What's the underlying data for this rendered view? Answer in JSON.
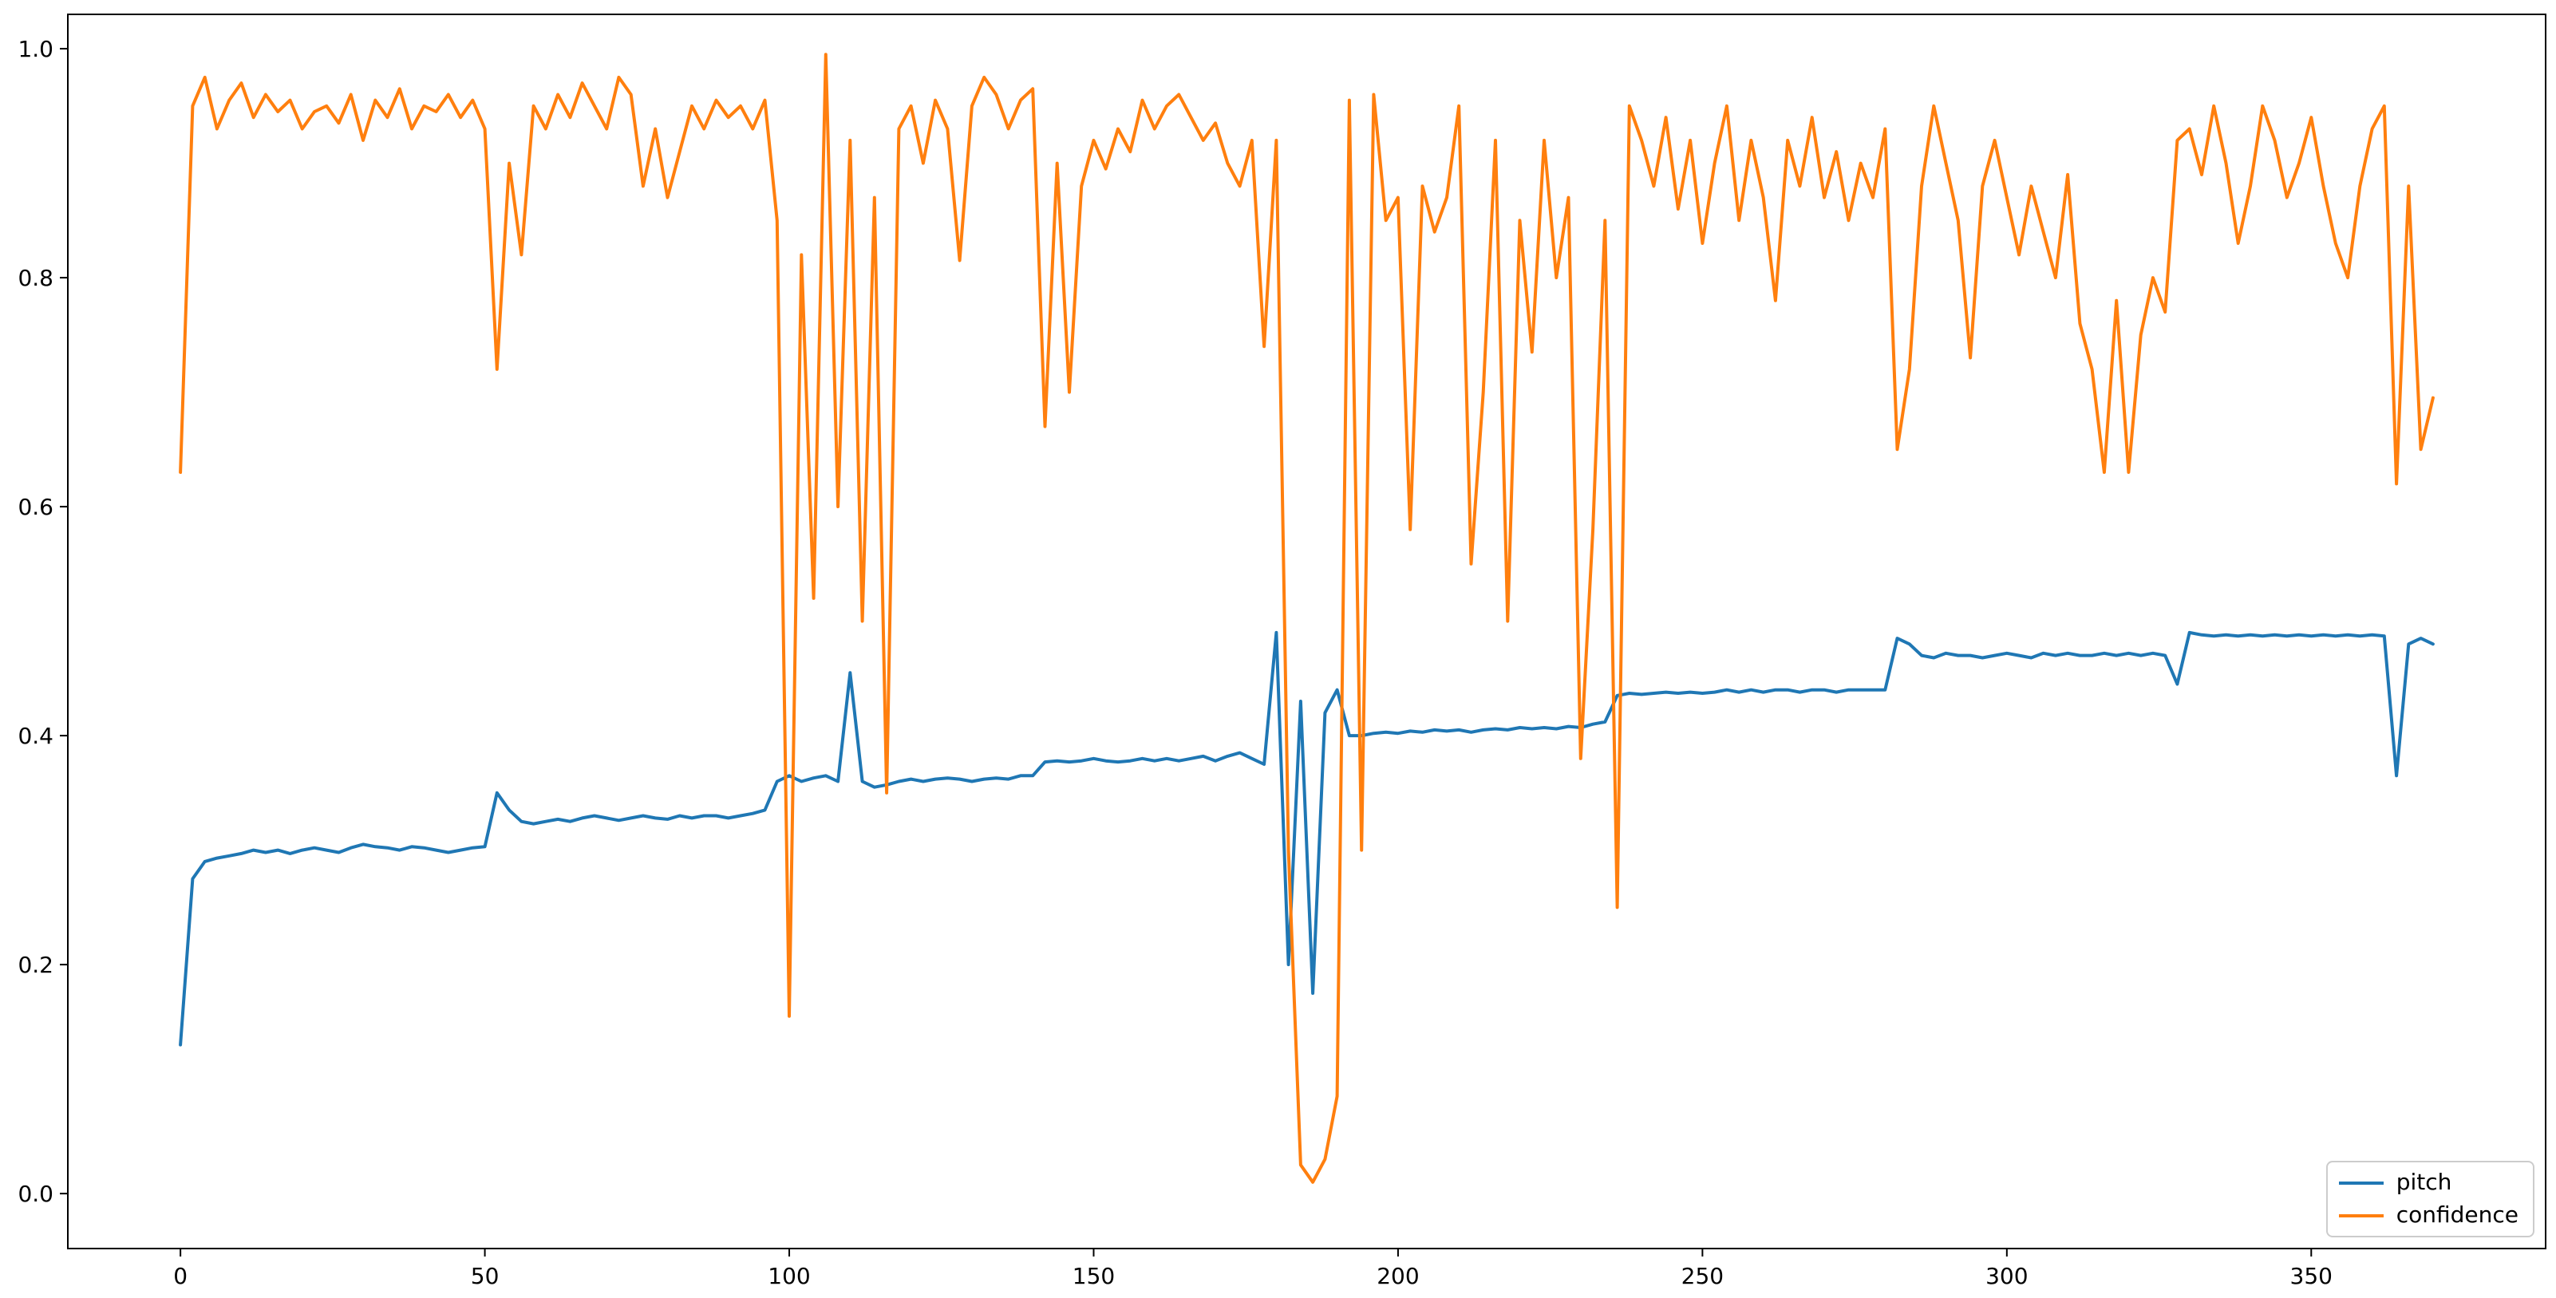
{
  "figure": {
    "background": "#ffffff"
  },
  "chart_data": {
    "type": "line",
    "title": "",
    "xlabel": "",
    "ylabel": "",
    "grid": false,
    "legend_position": "lower right",
    "xlim": [
      -18.5,
      388.5
    ],
    "ylim": [
      -0.048,
      1.03
    ],
    "x_ticks": [
      0,
      50,
      100,
      150,
      200,
      250,
      300,
      350
    ],
    "x_tick_labels": [
      "0",
      "50",
      "100",
      "150",
      "200",
      "250",
      "300",
      "350"
    ],
    "y_ticks": [
      0.0,
      0.2,
      0.4,
      0.6,
      0.8,
      1.0
    ],
    "y_tick_labels": [
      "0.0",
      "0.2",
      "0.4",
      "0.6",
      "0.8",
      "1.0"
    ],
    "x": [
      0,
      2,
      4,
      6,
      8,
      10,
      12,
      14,
      16,
      18,
      20,
      22,
      24,
      26,
      28,
      30,
      32,
      34,
      36,
      38,
      40,
      42,
      44,
      46,
      48,
      50,
      52,
      54,
      56,
      58,
      60,
      62,
      64,
      66,
      68,
      70,
      72,
      74,
      76,
      78,
      80,
      82,
      84,
      86,
      88,
      90,
      92,
      94,
      96,
      98,
      100,
      102,
      104,
      106,
      108,
      110,
      112,
      114,
      116,
      118,
      120,
      122,
      124,
      126,
      128,
      130,
      132,
      134,
      136,
      138,
      140,
      142,
      144,
      146,
      148,
      150,
      152,
      154,
      156,
      158,
      160,
      162,
      164,
      166,
      168,
      170,
      172,
      174,
      176,
      178,
      180,
      182,
      184,
      186,
      188,
      190,
      192,
      194,
      196,
      198,
      200,
      202,
      204,
      206,
      208,
      210,
      212,
      214,
      216,
      218,
      220,
      222,
      224,
      226,
      228,
      230,
      232,
      234,
      236,
      238,
      240,
      242,
      244,
      246,
      248,
      250,
      252,
      254,
      256,
      258,
      260,
      262,
      264,
      266,
      268,
      270,
      272,
      274,
      276,
      278,
      280,
      282,
      284,
      286,
      288,
      290,
      292,
      294,
      296,
      298,
      300,
      302,
      304,
      306,
      308,
      310,
      312,
      314,
      316,
      318,
      320,
      322,
      324,
      326,
      328,
      330,
      332,
      334,
      336,
      338,
      340,
      342,
      344,
      346,
      348,
      350,
      352,
      354,
      356,
      358,
      360,
      362,
      364,
      366,
      368,
      370
    ],
    "series": [
      {
        "name": "pitch",
        "color": "#1f77b4",
        "values": [
          0.13,
          0.275,
          0.29,
          0.293,
          0.295,
          0.297,
          0.3,
          0.298,
          0.3,
          0.297,
          0.3,
          0.302,
          0.3,
          0.298,
          0.302,
          0.305,
          0.303,
          0.302,
          0.3,
          0.303,
          0.302,
          0.3,
          0.298,
          0.3,
          0.302,
          0.303,
          0.35,
          0.335,
          0.325,
          0.323,
          0.325,
          0.327,
          0.325,
          0.328,
          0.33,
          0.328,
          0.326,
          0.328,
          0.33,
          0.328,
          0.327,
          0.33,
          0.328,
          0.33,
          0.33,
          0.328,
          0.33,
          0.332,
          0.335,
          0.36,
          0.365,
          0.36,
          0.363,
          0.365,
          0.36,
          0.455,
          0.36,
          0.355,
          0.357,
          0.36,
          0.362,
          0.36,
          0.362,
          0.363,
          0.362,
          0.36,
          0.362,
          0.363,
          0.362,
          0.365,
          0.365,
          0.377,
          0.378,
          0.377,
          0.378,
          0.38,
          0.378,
          0.377,
          0.378,
          0.38,
          0.378,
          0.38,
          0.378,
          0.38,
          0.382,
          0.378,
          0.382,
          0.385,
          0.38,
          0.375,
          0.49,
          0.2,
          0.43,
          0.175,
          0.42,
          0.44,
          0.4,
          0.4,
          0.402,
          0.403,
          0.402,
          0.404,
          0.403,
          0.405,
          0.404,
          0.405,
          0.403,
          0.405,
          0.406,
          0.405,
          0.407,
          0.406,
          0.407,
          0.406,
          0.408,
          0.407,
          0.41,
          0.412,
          0.435,
          0.437,
          0.436,
          0.437,
          0.438,
          0.437,
          0.438,
          0.437,
          0.438,
          0.44,
          0.438,
          0.44,
          0.438,
          0.44,
          0.44,
          0.438,
          0.44,
          0.44,
          0.438,
          0.44,
          0.44,
          0.44,
          0.44,
          0.485,
          0.48,
          0.47,
          0.468,
          0.472,
          0.47,
          0.47,
          0.468,
          0.47,
          0.472,
          0.47,
          0.468,
          0.472,
          0.47,
          0.472,
          0.47,
          0.47,
          0.472,
          0.47,
          0.472,
          0.47,
          0.472,
          0.47,
          0.445,
          0.49,
          0.488,
          0.487,
          0.488,
          0.487,
          0.488,
          0.487,
          0.488,
          0.487,
          0.488,
          0.487,
          0.488,
          0.487,
          0.488,
          0.487,
          0.488,
          0.487,
          0.365,
          0.48,
          0.485,
          0.48
        ]
      },
      {
        "name": "confidence",
        "color": "#ff7f0e",
        "values": [
          0.63,
          0.95,
          0.975,
          0.93,
          0.955,
          0.97,
          0.94,
          0.96,
          0.945,
          0.955,
          0.93,
          0.945,
          0.95,
          0.935,
          0.96,
          0.92,
          0.955,
          0.94,
          0.965,
          0.93,
          0.95,
          0.945,
          0.96,
          0.94,
          0.955,
          0.93,
          0.72,
          0.9,
          0.82,
          0.95,
          0.93,
          0.96,
          0.94,
          0.97,
          0.95,
          0.93,
          0.975,
          0.96,
          0.88,
          0.93,
          0.87,
          0.91,
          0.95,
          0.93,
          0.955,
          0.94,
          0.95,
          0.93,
          0.955,
          0.85,
          0.155,
          0.82,
          0.52,
          0.995,
          0.6,
          0.92,
          0.5,
          0.87,
          0.35,
          0.93,
          0.95,
          0.9,
          0.955,
          0.93,
          0.815,
          0.95,
          0.975,
          0.96,
          0.93,
          0.955,
          0.965,
          0.67,
          0.9,
          0.7,
          0.88,
          0.92,
          0.895,
          0.93,
          0.91,
          0.955,
          0.93,
          0.95,
          0.96,
          0.94,
          0.92,
          0.935,
          0.9,
          0.88,
          0.92,
          0.74,
          0.92,
          0.3,
          0.025,
          0.01,
          0.03,
          0.085,
          0.955,
          0.3,
          0.96,
          0.85,
          0.87,
          0.58,
          0.88,
          0.84,
          0.87,
          0.95,
          0.55,
          0.7,
          0.92,
          0.5,
          0.85,
          0.735,
          0.92,
          0.8,
          0.87,
          0.38,
          0.58,
          0.85,
          0.25,
          0.95,
          0.92,
          0.88,
          0.94,
          0.86,
          0.92,
          0.83,
          0.9,
          0.95,
          0.85,
          0.92,
          0.87,
          0.78,
          0.92,
          0.88,
          0.94,
          0.87,
          0.91,
          0.85,
          0.9,
          0.87,
          0.93,
          0.65,
          0.72,
          0.88,
          0.95,
          0.9,
          0.85,
          0.73,
          0.88,
          0.92,
          0.87,
          0.82,
          0.88,
          0.84,
          0.8,
          0.89,
          0.76,
          0.72,
          0.63,
          0.78,
          0.63,
          0.75,
          0.8,
          0.77,
          0.92,
          0.93,
          0.89,
          0.95,
          0.9,
          0.83,
          0.88,
          0.95,
          0.92,
          0.87,
          0.9,
          0.94,
          0.88,
          0.83,
          0.8,
          0.88,
          0.93,
          0.95,
          0.62,
          0.88,
          0.65,
          0.695
        ]
      }
    ]
  },
  "legend": {
    "items": [
      {
        "label": "pitch",
        "color": "#1f77b4"
      },
      {
        "label": "confidence",
        "color": "#ff7f0e"
      }
    ]
  }
}
